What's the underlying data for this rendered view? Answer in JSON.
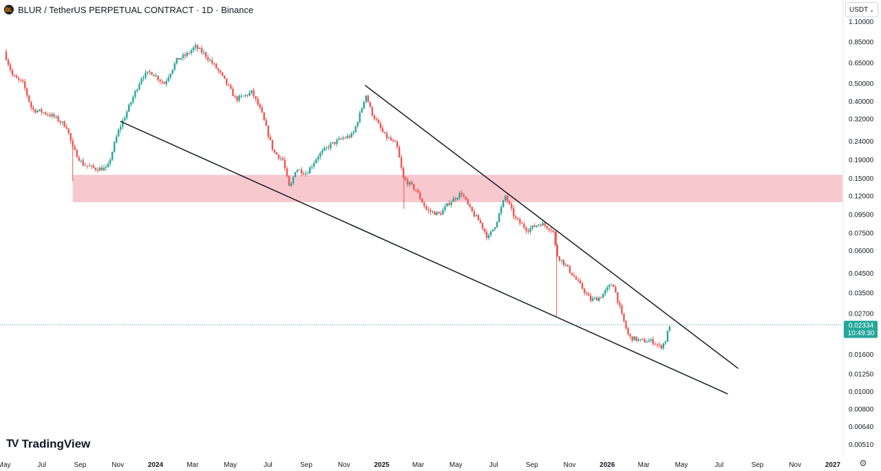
{
  "header": {
    "logo_text": "BL",
    "title": "BLUR / TetherUS PERPETUAL CONTRACT · 1D · Binance"
  },
  "currency": {
    "label": "USDT",
    "icon": "chevron-down-icon"
  },
  "brand": {
    "logo": "TV",
    "name": "TradingView"
  },
  "settings": {
    "icon": "gear-icon"
  },
  "colors": {
    "up": "#26a69a",
    "down": "#ef5350",
    "zone": "#f8c8cf",
    "trendline": "#131722",
    "last_price_bg": "#26a69a"
  },
  "chart_data": {
    "type": "candlestick",
    "x_start": "2023-05-01",
    "x_end": "2027-01-31",
    "y_scale": "log",
    "ylim": [
      0.0045,
      1.25
    ],
    "y_ticks": [
      "1.10000",
      "0.85000",
      "0.65000",
      "0.50000",
      "0.40000",
      "0.32000",
      "0.24000",
      "0.19000",
      "0.15000",
      "0.12000",
      "0.09500",
      "0.07500",
      "0.06000",
      "0.04500",
      "0.03500",
      "0.02700",
      "0.01600",
      "0.01250",
      "0.01000",
      "0.00800",
      "0.00640",
      "0.00510"
    ],
    "x_ticks": [
      {
        "label": "May",
        "date": "2023-05-01",
        "bold": false
      },
      {
        "label": "Jul",
        "date": "2023-07-01",
        "bold": false
      },
      {
        "label": "Sep",
        "date": "2023-09-01",
        "bold": false
      },
      {
        "label": "Nov",
        "date": "2023-11-01",
        "bold": false
      },
      {
        "label": "2024",
        "date": "2024-01-01",
        "bold": true
      },
      {
        "label": "Mar",
        "date": "2024-03-01",
        "bold": false
      },
      {
        "label": "May",
        "date": "2024-05-01",
        "bold": false
      },
      {
        "label": "Jul",
        "date": "2024-07-01",
        "bold": false
      },
      {
        "label": "Sep",
        "date": "2024-09-01",
        "bold": false
      },
      {
        "label": "Nov",
        "date": "2024-11-01",
        "bold": false
      },
      {
        "label": "2025",
        "date": "2025-01-01",
        "bold": true
      },
      {
        "label": "Mar",
        "date": "2025-03-01",
        "bold": false
      },
      {
        "label": "May",
        "date": "2025-05-01",
        "bold": false
      },
      {
        "label": "Jul",
        "date": "2025-07-01",
        "bold": false
      },
      {
        "label": "Sep",
        "date": "2025-09-01",
        "bold": false
      },
      {
        "label": "Nov",
        "date": "2025-11-01",
        "bold": false
      },
      {
        "label": "2026",
        "date": "2026-01-01",
        "bold": true
      },
      {
        "label": "Mar",
        "date": "2026-03-01",
        "bold": false
      },
      {
        "label": "May",
        "date": "2026-05-01",
        "bold": false
      },
      {
        "label": "Jul",
        "date": "2026-07-01",
        "bold": false
      },
      {
        "label": "Sep",
        "date": "2026-09-01",
        "bold": false
      },
      {
        "label": "Nov",
        "date": "2026-11-01",
        "bold": false
      },
      {
        "label": "2027",
        "date": "2027-01-01",
        "bold": true
      }
    ],
    "price_path": [
      {
        "date": "2023-05-01",
        "price": 0.75
      },
      {
        "date": "2023-05-15",
        "price": 0.55
      },
      {
        "date": "2023-06-01",
        "price": 0.5
      },
      {
        "date": "2023-06-15",
        "price": 0.36
      },
      {
        "date": "2023-07-01",
        "price": 0.35
      },
      {
        "date": "2023-07-20",
        "price": 0.33
      },
      {
        "date": "2023-08-10",
        "price": 0.29
      },
      {
        "date": "2023-08-20",
        "price": 0.22
      },
      {
        "date": "2023-09-05",
        "price": 0.18
      },
      {
        "date": "2023-09-25",
        "price": 0.17
      },
      {
        "date": "2023-10-15",
        "price": 0.17
      },
      {
        "date": "2023-11-01",
        "price": 0.27
      },
      {
        "date": "2023-11-20",
        "price": 0.38
      },
      {
        "date": "2023-12-10",
        "price": 0.55
      },
      {
        "date": "2023-12-25",
        "price": 0.58
      },
      {
        "date": "2024-01-15",
        "price": 0.5
      },
      {
        "date": "2024-02-05",
        "price": 0.68
      },
      {
        "date": "2024-02-20",
        "price": 0.72
      },
      {
        "date": "2024-03-05",
        "price": 0.8
      },
      {
        "date": "2024-03-20",
        "price": 0.73
      },
      {
        "date": "2024-04-10",
        "price": 0.6
      },
      {
        "date": "2024-04-25",
        "price": 0.5
      },
      {
        "date": "2024-05-10",
        "price": 0.41
      },
      {
        "date": "2024-05-25",
        "price": 0.43
      },
      {
        "date": "2024-06-05",
        "price": 0.45
      },
      {
        "date": "2024-06-20",
        "price": 0.35
      },
      {
        "date": "2024-07-10",
        "price": 0.21
      },
      {
        "date": "2024-07-25",
        "price": 0.19
      },
      {
        "date": "2024-08-05",
        "price": 0.13
      },
      {
        "date": "2024-08-15",
        "price": 0.17
      },
      {
        "date": "2024-09-01",
        "price": 0.16
      },
      {
        "date": "2024-09-20",
        "price": 0.2
      },
      {
        "date": "2024-10-10",
        "price": 0.23
      },
      {
        "date": "2024-10-30",
        "price": 0.25
      },
      {
        "date": "2024-11-15",
        "price": 0.26
      },
      {
        "date": "2024-11-28",
        "price": 0.35
      },
      {
        "date": "2024-12-06",
        "price": 0.44
      },
      {
        "date": "2024-12-15",
        "price": 0.35
      },
      {
        "date": "2025-01-05",
        "price": 0.26
      },
      {
        "date": "2025-01-25",
        "price": 0.23
      },
      {
        "date": "2025-02-05",
        "price": 0.15
      },
      {
        "date": "2025-02-25",
        "price": 0.13
      },
      {
        "date": "2025-03-15",
        "price": 0.1
      },
      {
        "date": "2025-04-05",
        "price": 0.095
      },
      {
        "date": "2025-04-20",
        "price": 0.11
      },
      {
        "date": "2025-05-10",
        "price": 0.125
      },
      {
        "date": "2025-05-25",
        "price": 0.1
      },
      {
        "date": "2025-06-10",
        "price": 0.085
      },
      {
        "date": "2025-06-22",
        "price": 0.07
      },
      {
        "date": "2025-07-05",
        "price": 0.085
      },
      {
        "date": "2025-07-20",
        "price": 0.12
      },
      {
        "date": "2025-08-05",
        "price": 0.09
      },
      {
        "date": "2025-08-25",
        "price": 0.078
      },
      {
        "date": "2025-09-15",
        "price": 0.085
      },
      {
        "date": "2025-10-05",
        "price": 0.078
      },
      {
        "date": "2025-10-11",
        "price": 0.057
      },
      {
        "date": "2025-10-25",
        "price": 0.05
      },
      {
        "date": "2025-11-15",
        "price": 0.04
      },
      {
        "date": "2025-12-05",
        "price": 0.032
      },
      {
        "date": "2025-12-20",
        "price": 0.033
      },
      {
        "date": "2026-01-10",
        "price": 0.04
      },
      {
        "date": "2026-01-25",
        "price": 0.026
      },
      {
        "date": "2026-02-05",
        "price": 0.02
      },
      {
        "date": "2026-02-25",
        "price": 0.019
      },
      {
        "date": "2026-03-15",
        "price": 0.019
      },
      {
        "date": "2026-03-28",
        "price": 0.0175
      },
      {
        "date": "2026-04-05",
        "price": 0.019
      },
      {
        "date": "2026-04-12",
        "price": 0.02334
      }
    ],
    "candle_count": 320,
    "zone": {
      "x_from": "2023-08-20",
      "x_to": "2027-01-31",
      "y_low": 0.111,
      "y_high": 0.157
    },
    "trendlines": [
      {
        "name": "upper",
        "from": {
          "date": "2024-12-05",
          "price": 0.49
        },
        "to": {
          "date": "2026-08-01",
          "price": 0.0134
        }
      },
      {
        "name": "lower",
        "from": {
          "date": "2023-11-05",
          "price": 0.31
        },
        "to": {
          "date": "2026-07-15",
          "price": 0.0097
        }
      }
    ],
    "last_price": {
      "value": "0.02334",
      "price": 0.02334,
      "countdown": "10:49:30"
    }
  }
}
